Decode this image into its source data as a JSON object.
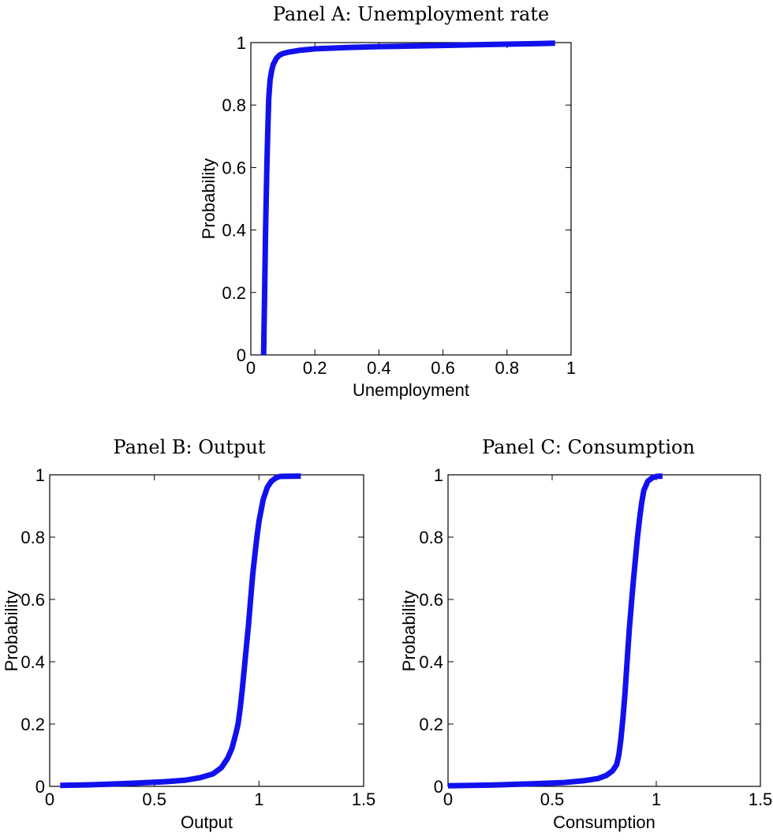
{
  "chart_data": [
    {
      "type": "line",
      "title": "Panel A: Unemployment rate",
      "xlabel": "Unemployment",
      "ylabel": "Probability",
      "xlim": [
        0,
        1
      ],
      "ylim": [
        0,
        1
      ],
      "xticks": [
        "0",
        "0.2",
        "0.4",
        "0.6",
        "0.8",
        "1"
      ],
      "yticks": [
        "0",
        "0.2",
        "0.4",
        "0.6",
        "0.8",
        "1"
      ],
      "grid": false,
      "color": "#1111ee",
      "series": [
        {
          "x": [
            0.04,
            0.043,
            0.046,
            0.05,
            0.053,
            0.056,
            0.06,
            0.065,
            0.07,
            0.08,
            0.09,
            0.1,
            0.12,
            0.15,
            0.2,
            0.3,
            0.4,
            0.5,
            0.6,
            0.7,
            0.8,
            0.9,
            0.95
          ],
          "y": [
            0.0,
            0.2,
            0.4,
            0.6,
            0.72,
            0.82,
            0.88,
            0.91,
            0.93,
            0.95,
            0.96,
            0.965,
            0.97,
            0.975,
            0.98,
            0.984,
            0.987,
            0.989,
            0.991,
            0.993,
            0.995,
            0.997,
            0.998
          ]
        }
      ]
    },
    {
      "type": "line",
      "title": "Panel B: Output",
      "xlabel": "Output",
      "ylabel": "Probability",
      "xlim": [
        0,
        1.5
      ],
      "ylim": [
        0,
        1
      ],
      "xticks": [
        "0",
        "0.5",
        "1",
        "1.5"
      ],
      "yticks": [
        "0",
        "0.2",
        "0.4",
        "0.6",
        "0.8",
        "1"
      ],
      "grid": false,
      "color": "#1111ee",
      "series": [
        {
          "x": [
            0.05,
            0.2,
            0.4,
            0.55,
            0.65,
            0.72,
            0.78,
            0.82,
            0.85,
            0.87,
            0.89,
            0.9,
            0.91,
            0.92,
            0.93,
            0.94,
            0.95,
            0.96,
            0.97,
            0.98,
            0.99,
            1.0,
            1.02,
            1.04,
            1.06,
            1.08,
            1.1,
            1.2
          ],
          "y": [
            0.003,
            0.005,
            0.01,
            0.015,
            0.02,
            0.028,
            0.04,
            0.06,
            0.09,
            0.12,
            0.17,
            0.2,
            0.25,
            0.31,
            0.38,
            0.45,
            0.52,
            0.6,
            0.68,
            0.74,
            0.8,
            0.85,
            0.92,
            0.96,
            0.98,
            0.99,
            0.995,
            0.996
          ]
        }
      ]
    },
    {
      "type": "line",
      "title": "Panel C: Consumption",
      "xlabel": "Consumption",
      "ylabel": "Probability",
      "xlim": [
        0,
        1.5
      ],
      "ylim": [
        0,
        1
      ],
      "xticks": [
        "0",
        "0.5",
        "1",
        "1.5"
      ],
      "yticks": [
        "0",
        "0.2",
        "0.4",
        "0.6",
        "0.8",
        "1"
      ],
      "grid": false,
      "color": "#1111ee",
      "series": [
        {
          "x": [
            0.0,
            0.2,
            0.4,
            0.55,
            0.65,
            0.72,
            0.76,
            0.79,
            0.81,
            0.82,
            0.83,
            0.84,
            0.85,
            0.86,
            0.87,
            0.88,
            0.89,
            0.9,
            0.91,
            0.92,
            0.93,
            0.94,
            0.96,
            0.98,
            1.0,
            1.03
          ],
          "y": [
            0.002,
            0.004,
            0.008,
            0.012,
            0.018,
            0.025,
            0.035,
            0.05,
            0.07,
            0.1,
            0.15,
            0.22,
            0.3,
            0.4,
            0.5,
            0.58,
            0.66,
            0.73,
            0.8,
            0.86,
            0.91,
            0.95,
            0.98,
            0.99,
            0.995,
            0.996
          ]
        }
      ]
    }
  ]
}
